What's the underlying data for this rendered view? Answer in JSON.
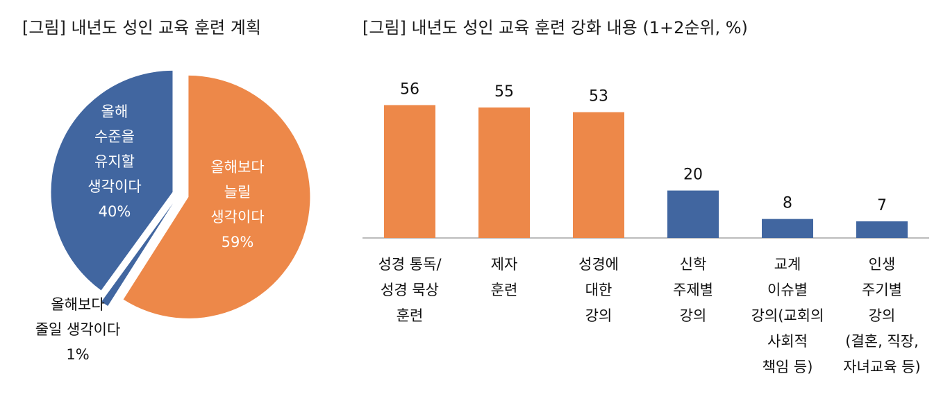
{
  "chart_data": [
    {
      "type": "pie",
      "title": "[그림] 내년도 성인 교육 훈련 계획",
      "slices": [
        {
          "label_lines": [
            "올해보다",
            "늘릴",
            "생각이다",
            "59%"
          ],
          "value": 59,
          "color": "#ED8849"
        },
        {
          "label_lines": [
            "올해보다",
            "줄일 생각이다",
            "1%"
          ],
          "value": 1,
          "color": "#4166A0"
        },
        {
          "label_lines": [
            "올해",
            "수준을",
            "유지할",
            "생각이다",
            "40%"
          ],
          "value": 40,
          "color": "#4166A0"
        }
      ]
    },
    {
      "type": "bar",
      "title": "[그림] 내년도 성인 교육 훈련 강화 내용 (1+2순위, %)",
      "categories": [
        [
          "성경 통독/",
          "성경 묵상",
          "훈련"
        ],
        [
          "제자",
          "훈련"
        ],
        [
          "성경에",
          "대한",
          "강의"
        ],
        [
          "신학",
          "주제별",
          "강의"
        ],
        [
          "교계",
          "이슈별",
          "강의(교회의",
          "사회적",
          "책임 등)"
        ],
        [
          "인생",
          "주기별",
          "강의",
          "(결혼, 직장,",
          "자녀교육 등)"
        ]
      ],
      "values": [
        56,
        55,
        53,
        20,
        8,
        7
      ],
      "colors": [
        "#ED8849",
        "#ED8849",
        "#ED8849",
        "#4166A0",
        "#4166A0",
        "#4166A0"
      ],
      "ylim": [
        0,
        60
      ],
      "grid": false
    }
  ]
}
